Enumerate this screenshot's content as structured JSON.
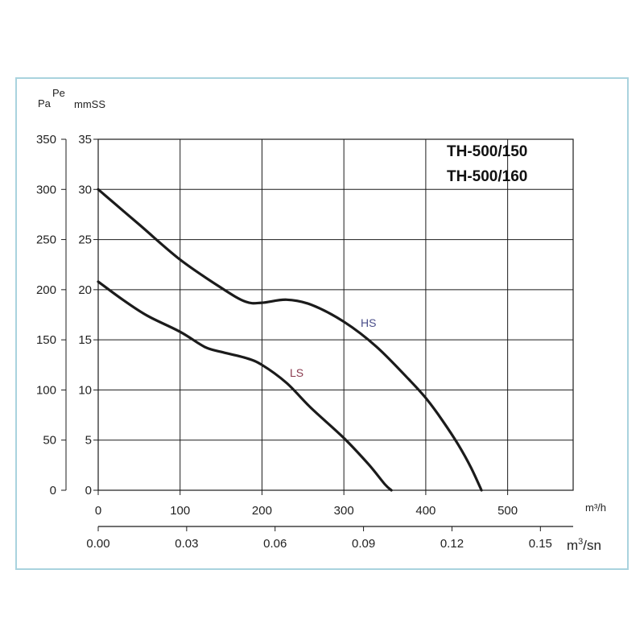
{
  "chart_data": {
    "type": "line",
    "title_lines": [
      "TH-500/150",
      "TH-500/160"
    ],
    "y_units": {
      "pa": "Pa",
      "pe": "Pe",
      "mmss": "mmSS"
    },
    "x_units": {
      "m3h": "m³/h",
      "m3sn": "m3/sn"
    },
    "pa_ticks": [
      "350",
      "300",
      "250",
      "200",
      "150",
      "100",
      "50",
      "0"
    ],
    "mmss_ticks": [
      "35",
      "30",
      "25",
      "20",
      "15",
      "10",
      "5",
      "0"
    ],
    "x_ticks_m3h": [
      "0",
      "100",
      "200",
      "300",
      "400",
      "500"
    ],
    "x_ticks_m3sn": [
      "0.00",
      "0.03",
      "0.06",
      "0.09",
      "0.12",
      "0.15"
    ],
    "xlim": [
      0,
      580
    ],
    "ylim": [
      0,
      35
    ],
    "grid": true,
    "series": [
      {
        "name": "HS",
        "color": "#1b1b1b",
        "x": [
          0,
          50,
          100,
          150,
          180,
          200,
          230,
          260,
          300,
          340,
          380,
          400,
          420,
          440,
          455,
          468
        ],
        "y": [
          30,
          26.5,
          23,
          20.2,
          18.8,
          18.7,
          19,
          18.5,
          16.8,
          14.3,
          11,
          9.2,
          7,
          4.5,
          2.3,
          0
        ]
      },
      {
        "name": "LS",
        "color": "#1b1b1b",
        "x": [
          0,
          30,
          60,
          100,
          130,
          150,
          180,
          200,
          230,
          260,
          300,
          330,
          350,
          358
        ],
        "y": [
          20.8,
          19,
          17.4,
          15.8,
          14.3,
          13.8,
          13.2,
          12.5,
          10.7,
          8.2,
          5.2,
          2.6,
          0.6,
          0
        ]
      }
    ]
  }
}
